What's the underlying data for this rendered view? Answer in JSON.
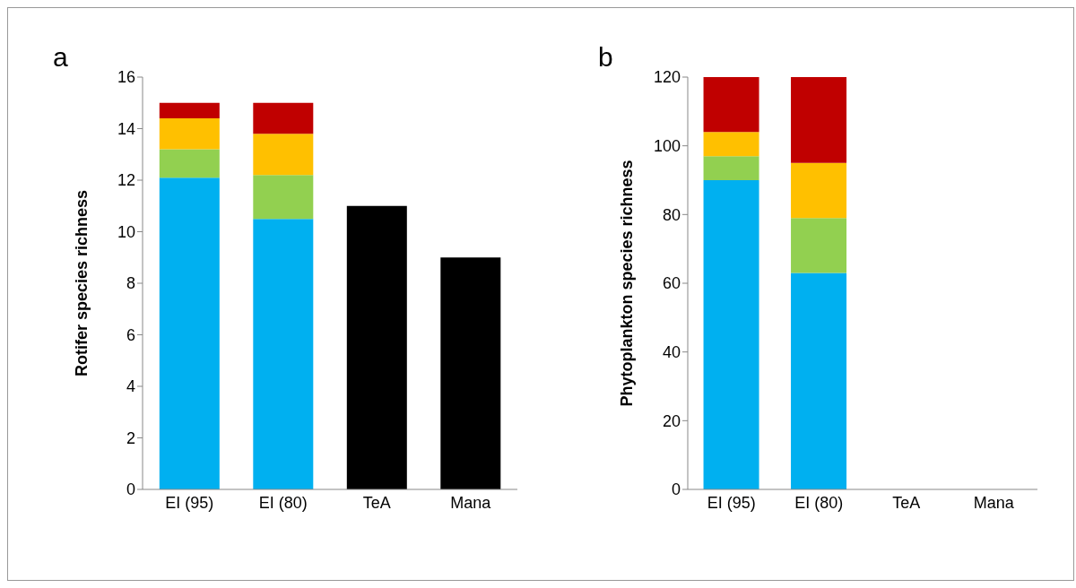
{
  "chart_data": [
    {
      "type": "bar",
      "stacked": true,
      "annotations": [
        "a"
      ],
      "ylabel": "Rotifer species richness",
      "categories": [
        "EI (95)",
        "EI (80)",
        "TeA",
        "Mana"
      ],
      "ylim": [
        0,
        16
      ],
      "yticks": [
        0,
        2,
        4,
        6,
        8,
        10,
        12,
        14,
        16
      ],
      "grid": false,
      "legend": false,
      "series": [
        {
          "color": "#00b0f0",
          "values": [
            12.1,
            10.5,
            null,
            null
          ]
        },
        {
          "color": "#92d050",
          "values": [
            1.1,
            1.7,
            null,
            null
          ]
        },
        {
          "color": "#ffc000",
          "values": [
            1.2,
            1.6,
            null,
            null
          ]
        },
        {
          "color": "#c00000",
          "values": [
            0.6,
            1.2,
            null,
            null
          ]
        },
        {
          "color": "#000000",
          "values": [
            null,
            null,
            11,
            9
          ]
        }
      ]
    },
    {
      "type": "bar",
      "stacked": true,
      "annotations": [
        "b"
      ],
      "ylabel": "Phytoplankton species richness",
      "categories": [
        "EI (95)",
        "EI (80)",
        "TeA",
        "Mana"
      ],
      "ylim": [
        0,
        120
      ],
      "yticks": [
        0,
        20,
        40,
        60,
        80,
        100,
        120
      ],
      "grid": false,
      "legend": false,
      "series": [
        {
          "color": "#00b0f0",
          "values": [
            90,
            63,
            null,
            null
          ]
        },
        {
          "color": "#92d050",
          "values": [
            7,
            16,
            null,
            null
          ]
        },
        {
          "color": "#ffc000",
          "values": [
            7,
            16,
            null,
            null
          ]
        },
        {
          "color": "#c00000",
          "values": [
            16,
            25,
            null,
            null
          ]
        }
      ]
    }
  ]
}
